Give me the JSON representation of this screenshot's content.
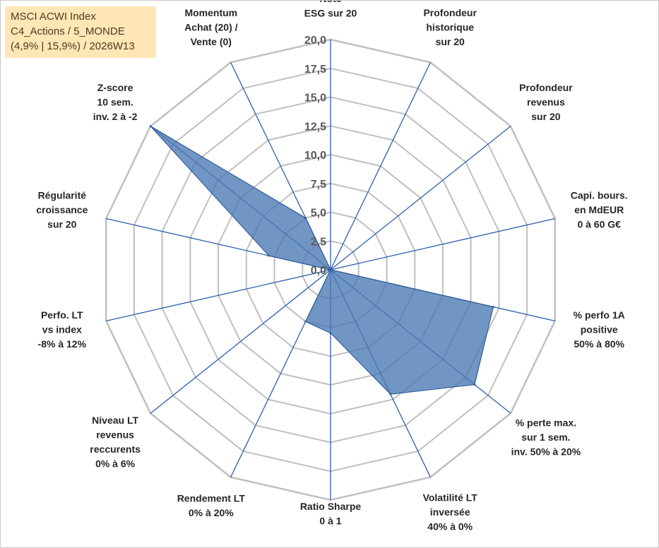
{
  "title_box": {
    "line1": "MSCI ACWI Index",
    "line2": "C4_Actions / 5_MONDE",
    "line3": "(4,9% | 15,9%) / 2026W13"
  },
  "colors": {
    "fill": "#4a78b3",
    "stroke": "#2f5f99",
    "spoke": "#2e5fb0",
    "grid": "#bfbfbf"
  },
  "chart_data": {
    "type": "radar",
    "rmin": 0,
    "rmax": 20,
    "rticks": [
      "0,0",
      "2,5",
      "5,0",
      "7,5",
      "10,0",
      "12,5",
      "15,0",
      "17,5",
      "20,0"
    ],
    "axes": [
      [
        "Note",
        "ESG sur 20"
      ],
      [
        "Profondeur",
        "historique",
        "sur 20"
      ],
      [
        "Profondeur",
        "revenus",
        "sur 20"
      ],
      [
        "Capi. bours.",
        "en MdEUR",
        "0 à 60 G€"
      ],
      [
        "% perfo 1A",
        "positive",
        "50% à 80%"
      ],
      [
        "% perte max.",
        "sur 1 sem.",
        "inv. 50% à 20%"
      ],
      [
        "Volatilité LT",
        "inversée",
        "40% à 0%"
      ],
      [
        "Ratio Sharpe",
        "0 à 1"
      ],
      [
        "Rendement LT",
        "0% à 20%"
      ],
      [
        "Niveau LT",
        "revenus",
        "reccurents",
        "0% à 6%"
      ],
      [
        "Perfo. LT",
        "vs index",
        "-8% à 12%"
      ],
      [
        "Régularité",
        "croissance",
        "sur 20"
      ],
      [
        "Z-score",
        "10 sem.",
        "inv. 2 à -2"
      ],
      [
        "Momentum",
        "Achat (20) /",
        "Vente (0)"
      ]
    ],
    "series": [
      {
        "name": "MSCI ACWI Index",
        "values": [
          0,
          0,
          0,
          0,
          14.5,
          16.0,
          12.0,
          5.5,
          5.0,
          0,
          0,
          5.5,
          20.0,
          5.0
        ]
      }
    ]
  }
}
